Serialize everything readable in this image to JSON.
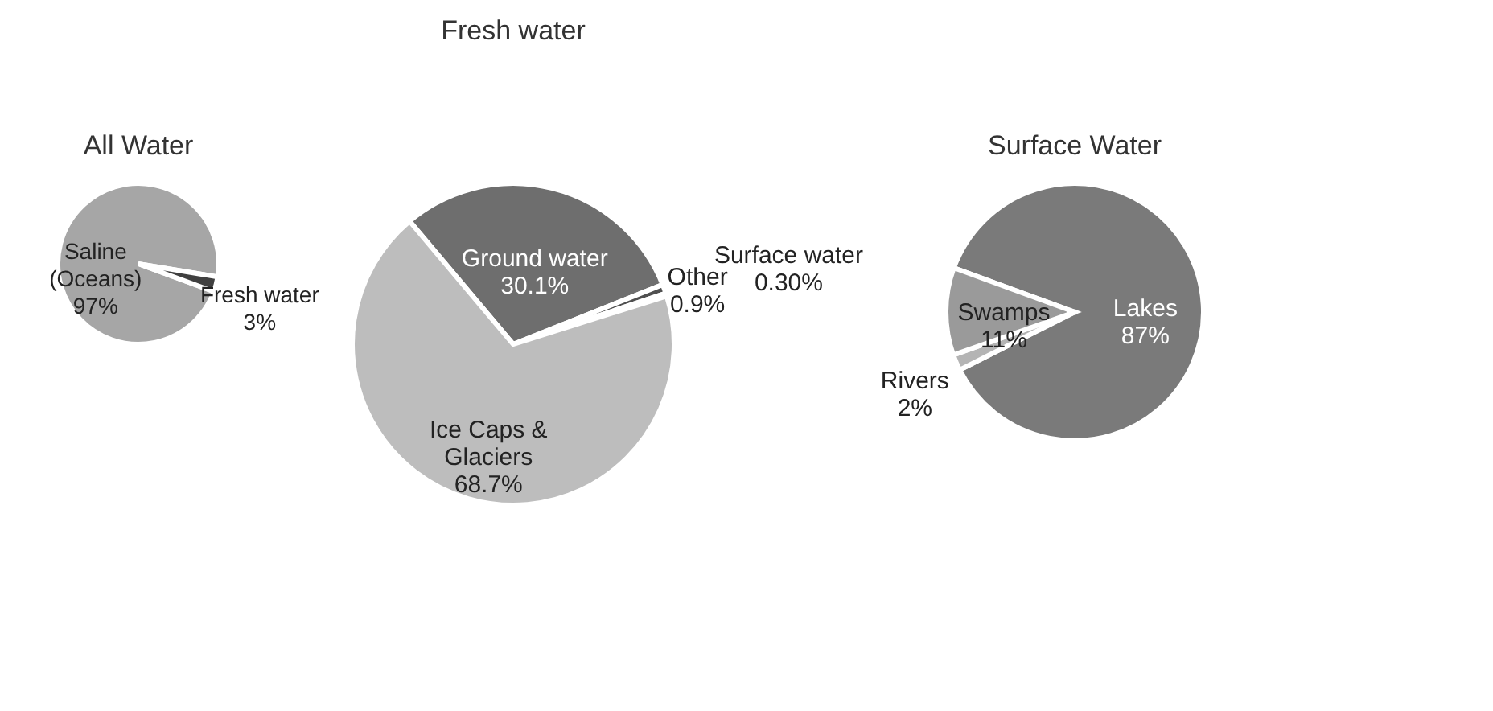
{
  "chart_data": [
    {
      "type": "pie",
      "title": "All Water",
      "categories": [
        "Saline\n(Oceans)",
        "Fresh water"
      ],
      "values": [
        97,
        3
      ],
      "value_labels": [
        "97%",
        "3%"
      ],
      "colors": [
        "#a6a6a6",
        "#404040"
      ]
    },
    {
      "type": "pie",
      "title": "Fresh water",
      "categories": [
        "Ground water",
        "Other",
        "Surface water",
        "Ice Caps &\nGlaciers"
      ],
      "values": [
        30.1,
        0.9,
        0.3,
        68.7
      ],
      "value_labels": [
        "30.1%",
        "0.9%",
        "0.30%",
        "68.7%"
      ],
      "colors": [
        "#6e6e6e",
        "#505050",
        "#8c8c8c",
        "#bdbdbd"
      ]
    },
    {
      "type": "pie",
      "title": "Surface Water",
      "categories": [
        "Lakes",
        "Rivers",
        "Swamps"
      ],
      "values": [
        87,
        2,
        11
      ],
      "value_labels": [
        "87%",
        "2%",
        "11%"
      ],
      "colors": [
        "#7a7a7a",
        "#b4b4b4",
        "#9a9a9a"
      ]
    }
  ]
}
